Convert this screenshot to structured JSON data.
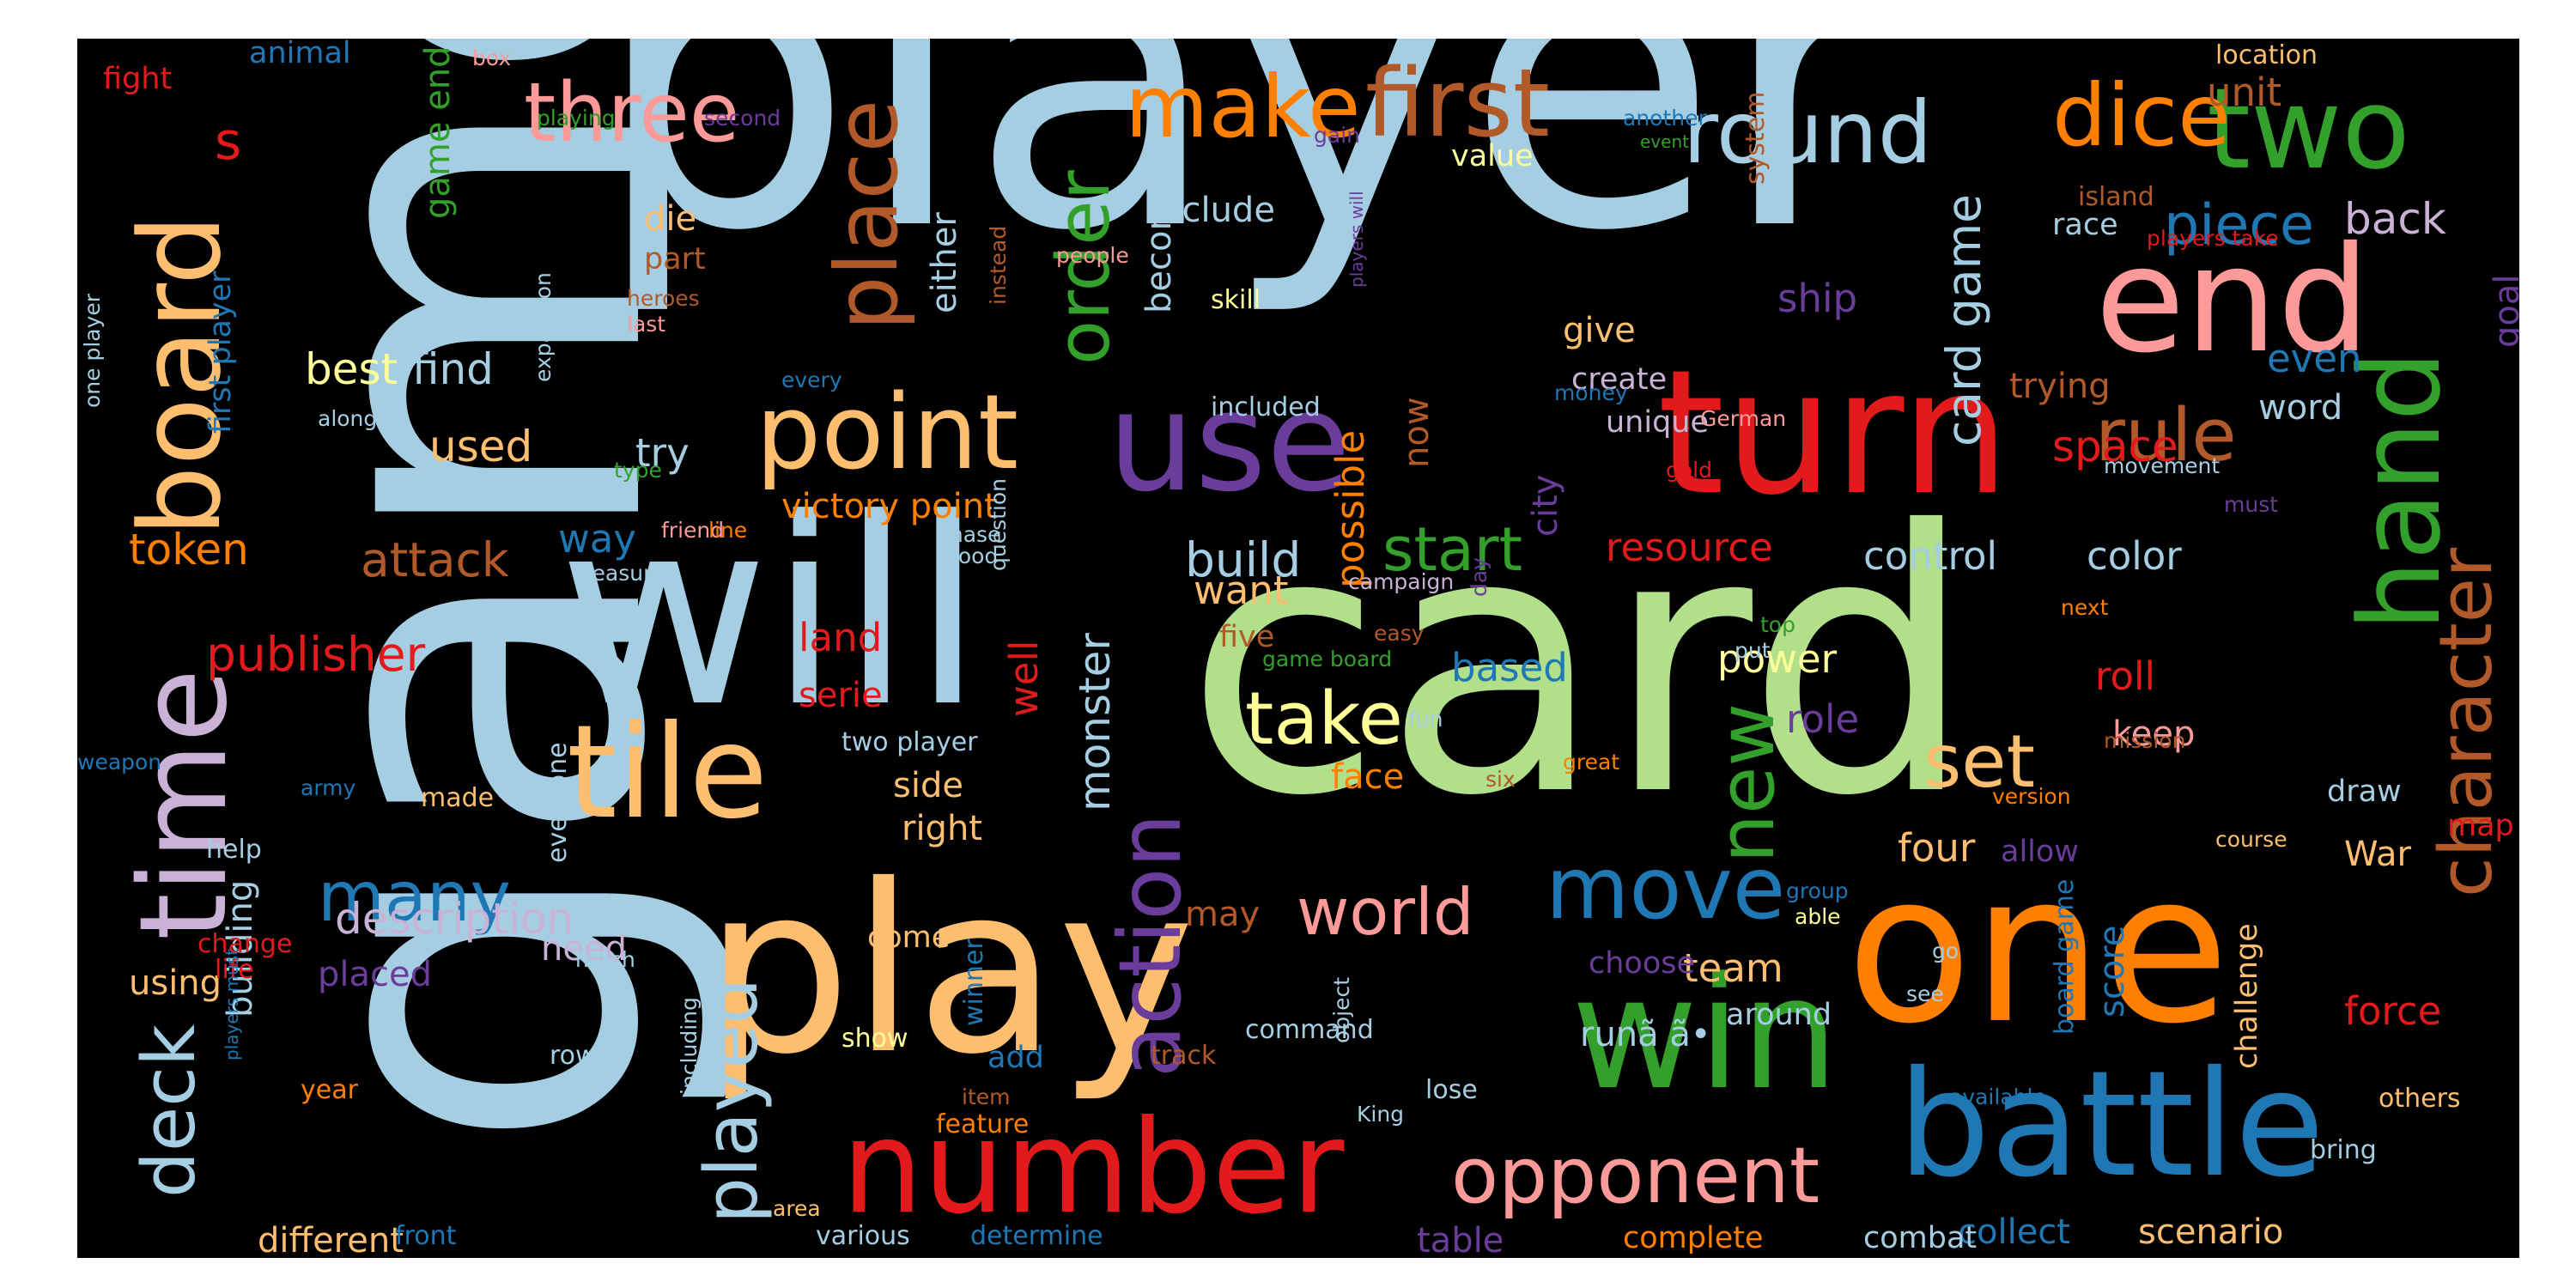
{
  "palette": {
    "lblue": "#a6cee3",
    "dblue": "#1f78b4",
    "lgreen": "#b2df8a",
    "dgreen": "#33a02c",
    "pink": "#fb9a99",
    "red": "#e31a1c",
    "lorange": "#fdbf6f",
    "orange": "#ff7f00",
    "lpurple": "#cab2d6",
    "purple": "#6a3d9a",
    "yellow": "#ffff99",
    "brown": "#b15928"
  },
  "words": [
    {
      "text": "game",
      "color": "lblue"
    },
    {
      "text": "player",
      "color": "lblue"
    },
    {
      "text": "card",
      "color": "lgreen"
    },
    {
      "text": "will",
      "color": "lblue"
    },
    {
      "text": "play",
      "color": "lorange"
    },
    {
      "text": "one",
      "color": "orange"
    },
    {
      "text": "turn",
      "color": "red"
    },
    {
      "text": "end",
      "color": "pink"
    },
    {
      "text": "win",
      "color": "dgreen"
    },
    {
      "text": "battle",
      "color": "dblue"
    },
    {
      "text": "number",
      "color": "red"
    },
    {
      "text": "use",
      "color": "purple"
    },
    {
      "text": "tile",
      "color": "lorange"
    },
    {
      "text": "board",
      "color": "lorange"
    },
    {
      "text": "time",
      "color": "lpurple"
    },
    {
      "text": "hand",
      "color": "dgreen"
    },
    {
      "text": "two",
      "color": "dgreen"
    },
    {
      "text": "point",
      "color": "lorange"
    },
    {
      "text": "first",
      "color": "brown"
    },
    {
      "text": "make",
      "color": "orange"
    },
    {
      "text": "round",
      "color": "lblue"
    },
    {
      "text": "dice",
      "color": "orange"
    },
    {
      "text": "three",
      "color": "pink"
    },
    {
      "text": "move",
      "color": "dblue"
    },
    {
      "text": "opponent",
      "color": "pink"
    },
    {
      "text": "take",
      "color": "yellow"
    },
    {
      "text": "action",
      "color": "purple"
    },
    {
      "text": "played",
      "color": "lblue"
    },
    {
      "text": "new",
      "color": "dgreen"
    },
    {
      "text": "set",
      "color": "lorange"
    },
    {
      "text": "rule",
      "color": "brown"
    },
    {
      "text": "piece",
      "color": "dblue"
    },
    {
      "text": "place",
      "color": "brown"
    },
    {
      "text": "order",
      "color": "dgreen"
    },
    {
      "text": "character",
      "color": "brown"
    },
    {
      "text": "world",
      "color": "pink"
    },
    {
      "text": "deck",
      "color": "lblue"
    },
    {
      "text": "start",
      "color": "dgreen"
    },
    {
      "text": "many",
      "color": "dblue"
    },
    {
      "text": "description",
      "color": "lpurple"
    },
    {
      "text": "card game",
      "color": "lblue"
    },
    {
      "text": "build",
      "color": "lblue"
    },
    {
      "text": "s",
      "color": "red"
    },
    {
      "text": "back",
      "color": "lpurple"
    },
    {
      "text": "unit",
      "color": "brown"
    },
    {
      "text": "best",
      "color": "yellow"
    },
    {
      "text": "find",
      "color": "lblue"
    },
    {
      "text": "token",
      "color": "orange"
    },
    {
      "text": "attack",
      "color": "brown"
    },
    {
      "text": "publisher",
      "color": "red"
    },
    {
      "text": "victory point",
      "color": "orange"
    },
    {
      "text": "used",
      "color": "lorange"
    },
    {
      "text": "way",
      "color": "dblue"
    },
    {
      "text": "try",
      "color": "lblue"
    },
    {
      "text": "land",
      "color": "red"
    },
    {
      "text": "well",
      "color": "red"
    },
    {
      "text": "serie",
      "color": "red"
    },
    {
      "text": "monster",
      "color": "lblue"
    },
    {
      "text": "become",
      "color": "lblue"
    },
    {
      "text": "either",
      "color": "lblue"
    },
    {
      "text": "include",
      "color": "lblue"
    },
    {
      "text": "possible",
      "color": "orange"
    },
    {
      "text": "now",
      "color": "brown"
    },
    {
      "text": "ship",
      "color": "purple"
    },
    {
      "text": "city",
      "color": "purple"
    },
    {
      "text": "resource",
      "color": "red"
    },
    {
      "text": "control",
      "color": "lblue"
    },
    {
      "text": "color",
      "color": "lblue"
    },
    {
      "text": "space",
      "color": "red"
    },
    {
      "text": "even",
      "color": "dblue"
    },
    {
      "text": "goal",
      "color": "purple"
    },
    {
      "text": "trying",
      "color": "brown"
    },
    {
      "text": "word",
      "color": "lblue"
    },
    {
      "text": "race",
      "color": "lblue"
    },
    {
      "text": "island",
      "color": "brown"
    },
    {
      "text": "players take",
      "color": "red"
    },
    {
      "text": "power",
      "color": "yellow"
    },
    {
      "text": "role",
      "color": "purple"
    },
    {
      "text": "roll",
      "color": "red"
    },
    {
      "text": "keep",
      "color": "pink"
    },
    {
      "text": "based",
      "color": "dblue"
    },
    {
      "text": "face",
      "color": "orange"
    },
    {
      "text": "want",
      "color": "lorange"
    },
    {
      "text": "five",
      "color": "brown"
    },
    {
      "text": "four",
      "color": "lorange"
    },
    {
      "text": "allow",
      "color": "purple"
    },
    {
      "text": "War",
      "color": "lorange"
    },
    {
      "text": "map",
      "color": "red"
    },
    {
      "text": "draw",
      "color": "lblue"
    },
    {
      "text": "team",
      "color": "lorange"
    },
    {
      "text": "around",
      "color": "lblue"
    },
    {
      "text": "force",
      "color": "red"
    },
    {
      "text": "scenario",
      "color": "lorange"
    },
    {
      "text": "collect",
      "color": "dblue"
    },
    {
      "text": "combat",
      "color": "lblue"
    },
    {
      "text": "complete",
      "color": "orange"
    },
    {
      "text": "table",
      "color": "purple"
    },
    {
      "text": "different",
      "color": "lorange"
    },
    {
      "text": "using",
      "color": "lorange"
    },
    {
      "text": "building",
      "color": "lblue"
    },
    {
      "text": "need",
      "color": "lpurple"
    },
    {
      "text": "placed",
      "color": "purple"
    },
    {
      "text": "side",
      "color": "lorange"
    },
    {
      "text": "right",
      "color": "lorange"
    },
    {
      "text": "may",
      "color": "brown"
    },
    {
      "text": "come",
      "color": "lorange"
    },
    {
      "text": "add",
      "color": "dblue"
    },
    {
      "text": "choose",
      "color": "purple"
    },
    {
      "text": "score",
      "color": "dblue"
    },
    {
      "text": "challenge",
      "color": "lorange"
    },
    {
      "text": "board game",
      "color": "dblue"
    },
    {
      "text": "runã ã•",
      "color": "lblue"
    },
    {
      "text": "give",
      "color": "lorange"
    },
    {
      "text": "create",
      "color": "lpurple"
    },
    {
      "text": "unique",
      "color": "lpurple"
    },
    {
      "text": "system",
      "color": "brown"
    },
    {
      "text": "value",
      "color": "yellow"
    },
    {
      "text": "skill",
      "color": "yellow"
    },
    {
      "text": "included",
      "color": "lblue"
    },
    {
      "text": "die",
      "color": "lorange"
    },
    {
      "text": "part",
      "color": "brown"
    },
    {
      "text": "heroes",
      "color": "brown"
    },
    {
      "text": "last",
      "color": "pink"
    },
    {
      "text": "game end",
      "color": "dgreen"
    },
    {
      "text": "first player",
      "color": "dblue"
    },
    {
      "text": "one player",
      "color": "lblue"
    },
    {
      "text": "fight",
      "color": "red"
    },
    {
      "text": "animal",
      "color": "dblue"
    },
    {
      "text": "box",
      "color": "pink"
    },
    {
      "text": "playing",
      "color": "dgreen"
    },
    {
      "text": "second",
      "color": "purple"
    },
    {
      "text": "expansion",
      "color": "lblue"
    },
    {
      "text": "along",
      "color": "lblue"
    },
    {
      "text": "every",
      "color": "dblue"
    },
    {
      "text": "friend",
      "color": "pink"
    },
    {
      "text": "line",
      "color": "orange"
    },
    {
      "text": "treasure",
      "color": "lblue"
    },
    {
      "text": "phase",
      "color": "lblue"
    },
    {
      "text": "good",
      "color": "lblue"
    },
    {
      "text": "question",
      "color": "lblue"
    },
    {
      "text": "instead",
      "color": "brown"
    },
    {
      "text": "people",
      "color": "pink"
    },
    {
      "text": "gain",
      "color": "purple"
    },
    {
      "text": "players will",
      "color": "purple"
    },
    {
      "text": "another",
      "color": "dblue"
    },
    {
      "text": "event",
      "color": "dgreen"
    },
    {
      "text": "location",
      "color": "lorange"
    },
    {
      "text": "money",
      "color": "dblue"
    },
    {
      "text": "German",
      "color": "pink"
    },
    {
      "text": "gold",
      "color": "red"
    },
    {
      "text": "must",
      "color": "purple"
    },
    {
      "text": "movement",
      "color": "lblue"
    },
    {
      "text": "campaign",
      "color": "lpurple"
    },
    {
      "text": "top",
      "color": "dgreen"
    },
    {
      "text": "next",
      "color": "orange"
    },
    {
      "text": "day",
      "color": "purple"
    },
    {
      "text": "put",
      "color": "lblue"
    },
    {
      "text": "easy",
      "color": "brown"
    },
    {
      "text": "game board",
      "color": "dgreen"
    },
    {
      "text": "fun",
      "color": "lblue"
    },
    {
      "text": "great",
      "color": "orange"
    },
    {
      "text": "six",
      "color": "brown"
    },
    {
      "text": "mission",
      "color": "brown"
    },
    {
      "text": "version",
      "color": "orange"
    },
    {
      "text": "course",
      "color": "lorange"
    },
    {
      "text": "group",
      "color": "dblue"
    },
    {
      "text": "able",
      "color": "yellow"
    },
    {
      "text": "go",
      "color": "lblue"
    },
    {
      "text": "see",
      "color": "lblue"
    },
    {
      "text": "available",
      "color": "dblue"
    },
    {
      "text": "others",
      "color": "lorange"
    },
    {
      "text": "bring",
      "color": "lblue"
    },
    {
      "text": "lose",
      "color": "lblue"
    },
    {
      "text": "King",
      "color": "lblue"
    },
    {
      "text": "object",
      "color": "lblue"
    },
    {
      "text": "command",
      "color": "lblue"
    },
    {
      "text": "track",
      "color": "brown"
    },
    {
      "text": "winner",
      "color": "dblue"
    },
    {
      "text": "item",
      "color": "brown"
    },
    {
      "text": "show",
      "color": "yellow"
    },
    {
      "text": "feature",
      "color": "orange"
    },
    {
      "text": "area",
      "color": "lorange"
    },
    {
      "text": "various",
      "color": "lblue"
    },
    {
      "text": "determine",
      "color": "dblue"
    },
    {
      "text": "including",
      "color": "lblue"
    },
    {
      "text": "row",
      "color": "lblue"
    },
    {
      "text": "much",
      "color": "lblue"
    },
    {
      "text": "two player",
      "color": "lblue"
    },
    {
      "text": "everyone",
      "color": "lblue"
    },
    {
      "text": "made",
      "color": "lorange"
    },
    {
      "text": "army",
      "color": "dblue"
    },
    {
      "text": "help",
      "color": "lblue"
    },
    {
      "text": "weapon",
      "color": "dblue"
    },
    {
      "text": "change",
      "color": "red"
    },
    {
      "text": "life",
      "color": "red"
    },
    {
      "text": "year",
      "color": "orange"
    },
    {
      "text": "players must",
      "color": "dblue"
    },
    {
      "text": "front",
      "color": "dblue"
    },
    {
      "text": "type",
      "color": "dgreen"
    }
  ]
}
